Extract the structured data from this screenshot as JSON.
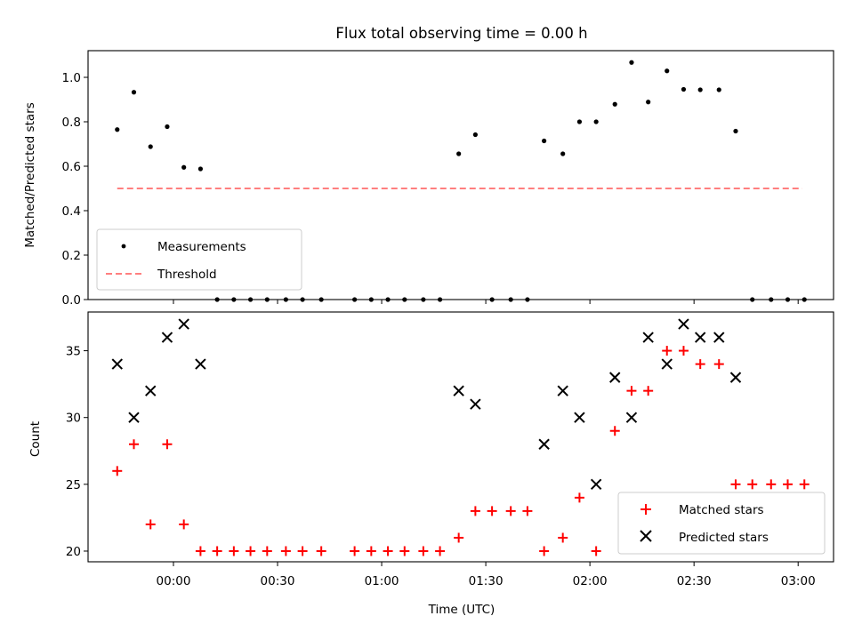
{
  "figure": {
    "title": "Flux total observing time = 0.00 h"
  },
  "chart_data": [
    {
      "type": "scatter",
      "ylabel": "Matched/Predicted stars",
      "xlabel": "",
      "xlim": [
        -0.41,
        3.17
      ],
      "ylim": [
        0.0,
        1.12
      ],
      "yticks": [
        "0.0",
        "0.2",
        "0.4",
        "0.6",
        "0.8",
        "1.0"
      ],
      "grid": false,
      "legend": {
        "position": "lower-left",
        "entries": [
          "Measurements",
          "Threshold"
        ]
      },
      "colors": {
        "measurements": "#000000",
        "threshold": "#ff7f7f"
      },
      "threshold": {
        "name": "Threshold",
        "x": [
          -0.27,
          3.02
        ],
        "y": 0.5,
        "style": "dashed"
      },
      "series": [
        {
          "name": "Measurements",
          "x": [
            -0.27,
            -0.19,
            -0.11,
            -0.03,
            0.05,
            0.13,
            0.21,
            0.29,
            0.37,
            0.45,
            0.54,
            0.62,
            0.71,
            0.87,
            0.95,
            1.03,
            1.11,
            1.2,
            1.28,
            1.37,
            1.45,
            1.53,
            1.62,
            1.7,
            1.78,
            1.87,
            1.95,
            2.03,
            2.12,
            2.2,
            2.28,
            2.37,
            2.45,
            2.53,
            2.62,
            2.7,
            2.78,
            2.87,
            2.95,
            3.03
          ],
          "y": [
            0.765,
            0.933,
            0.688,
            0.778,
            0.595,
            0.588,
            0.0,
            0.0,
            0.0,
            0.0,
            0.0,
            0.0,
            0.0,
            0.0,
            0.0,
            0.0,
            0.0,
            0.0,
            0.0,
            0.656,
            0.742,
            0.0,
            0.0,
            0.0,
            0.714,
            0.656,
            0.8,
            0.8,
            0.879,
            1.067,
            0.889,
            1.029,
            0.946,
            0.944,
            0.944,
            0.758,
            0.0,
            0.0,
            0.0,
            0.0
          ]
        }
      ]
    },
    {
      "type": "scatter",
      "ylabel": "Count",
      "xlabel": "Time (UTC)",
      "xlim": [
        -0.41,
        3.17
      ],
      "ylim": [
        19.2,
        37.9
      ],
      "yticks": [
        "20",
        "25",
        "30",
        "35"
      ],
      "xticks": [
        {
          "value": 0.0,
          "label": "00:00"
        },
        {
          "value": 0.5,
          "label": "00:30"
        },
        {
          "value": 1.0,
          "label": "01:00"
        },
        {
          "value": 1.5,
          "label": "01:30"
        },
        {
          "value": 2.0,
          "label": "02:00"
        },
        {
          "value": 2.5,
          "label": "02:30"
        },
        {
          "value": 3.0,
          "label": "03:00"
        }
      ],
      "grid": false,
      "legend": {
        "position": "lower-right",
        "entries": [
          "Matched stars",
          "Predicted stars"
        ]
      },
      "colors": {
        "matched": "#ff0000",
        "predicted": "#000000"
      },
      "series": [
        {
          "name": "Matched stars",
          "x": [
            -0.27,
            -0.19,
            -0.11,
            -0.03,
            0.05,
            0.13,
            0.21,
            0.29,
            0.37,
            0.45,
            0.54,
            0.62,
            0.71,
            0.87,
            0.95,
            1.03,
            1.11,
            1.2,
            1.28,
            1.37,
            1.45,
            1.53,
            1.62,
            1.7,
            1.78,
            1.87,
            1.95,
            2.03,
            2.12,
            2.2,
            2.28,
            2.37,
            2.45,
            2.53,
            2.62,
            2.7,
            2.78,
            2.87,
            2.95,
            3.03
          ],
          "y": [
            26,
            28,
            22,
            28,
            22,
            20,
            20,
            20,
            20,
            20,
            20,
            20,
            20,
            20,
            20,
            20,
            20,
            20,
            20,
            21,
            23,
            23,
            23,
            23,
            20,
            21,
            24,
            20,
            29,
            32,
            32,
            35,
            35,
            34,
            34,
            25,
            25,
            25,
            25,
            25
          ]
        },
        {
          "name": "Predicted stars",
          "x": [
            -0.27,
            -0.19,
            -0.11,
            -0.03,
            0.05,
            0.13,
            1.37,
            1.45,
            1.78,
            1.87,
            1.95,
            2.03,
            2.12,
            2.2,
            2.28,
            2.37,
            2.45,
            2.53,
            2.62,
            2.7
          ],
          "y": [
            34,
            30,
            32,
            36,
            37,
            34,
            32,
            31,
            28,
            32,
            30,
            25,
            33,
            30,
            36,
            34,
            37,
            36,
            36,
            33
          ]
        }
      ]
    }
  ]
}
